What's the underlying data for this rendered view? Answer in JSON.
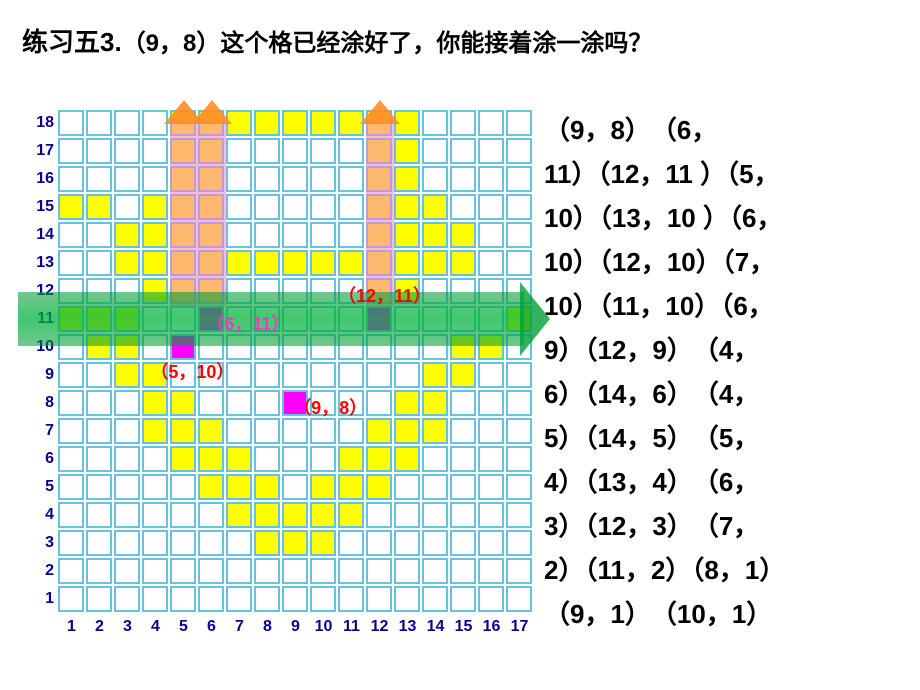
{
  "title": {
    "prefix": "练习五3.",
    "coord": "（9，8）",
    "rest": "这个格已经涂好了，你能接着涂一涂吗？"
  },
  "grid": {
    "cols": 17,
    "rows": 18,
    "cellSize": 28,
    "yellow": [
      [
        1,
        15
      ],
      [
        2,
        15
      ],
      [
        3,
        14
      ],
      [
        3,
        13
      ],
      [
        4,
        12
      ],
      [
        4,
        8
      ],
      [
        4,
        7
      ],
      [
        5,
        18
      ],
      [
        6,
        18
      ],
      [
        7,
        18
      ],
      [
        8,
        18
      ],
      [
        9,
        18
      ],
      [
        10,
        18
      ],
      [
        11,
        18
      ],
      [
        12,
        18
      ],
      [
        13,
        18
      ],
      [
        5,
        17
      ],
      [
        6,
        17
      ],
      [
        12,
        17
      ],
      [
        13,
        17
      ],
      [
        5,
        16
      ],
      [
        6,
        16
      ],
      [
        12,
        16
      ],
      [
        13,
        16
      ],
      [
        4,
        15
      ],
      [
        5,
        15
      ],
      [
        6,
        15
      ],
      [
        12,
        15
      ],
      [
        13,
        15
      ],
      [
        14,
        15
      ],
      [
        3,
        14
      ],
      [
        4,
        14
      ],
      [
        5,
        14
      ],
      [
        6,
        14
      ],
      [
        12,
        14
      ],
      [
        13,
        14
      ],
      [
        14,
        14
      ],
      [
        15,
        14
      ],
      [
        3,
        13
      ],
      [
        4,
        13
      ],
      [
        5,
        13
      ],
      [
        6,
        13
      ],
      [
        7,
        13
      ],
      [
        8,
        13
      ],
      [
        9,
        13
      ],
      [
        10,
        13
      ],
      [
        11,
        13
      ],
      [
        12,
        13
      ],
      [
        13,
        13
      ],
      [
        14,
        13
      ],
      [
        15,
        13
      ],
      [
        5,
        12
      ],
      [
        6,
        12
      ],
      [
        12,
        12
      ],
      [
        13,
        12
      ],
      [
        6,
        7
      ],
      [
        7,
        6
      ],
      [
        8,
        5
      ],
      [
        9,
        4
      ],
      [
        10,
        5
      ],
      [
        11,
        6
      ],
      [
        12,
        7
      ],
      [
        1,
        11
      ],
      [
        2,
        11
      ],
      [
        3,
        11
      ],
      [
        17,
        11
      ],
      [
        2,
        10
      ],
      [
        3,
        10
      ],
      [
        15,
        10
      ],
      [
        16,
        10
      ],
      [
        3,
        9
      ],
      [
        4,
        9
      ],
      [
        14,
        9
      ],
      [
        15,
        9
      ],
      [
        4,
        8
      ],
      [
        5,
        8
      ],
      [
        13,
        8
      ],
      [
        14,
        8
      ],
      [
        4,
        7
      ],
      [
        5,
        7
      ],
      [
        6,
        7
      ],
      [
        12,
        7
      ],
      [
        13,
        7
      ],
      [
        14,
        7
      ],
      [
        5,
        6
      ],
      [
        6,
        6
      ],
      [
        7,
        6
      ],
      [
        11,
        6
      ],
      [
        12,
        6
      ],
      [
        13,
        6
      ],
      [
        6,
        5
      ],
      [
        7,
        5
      ],
      [
        8,
        5
      ],
      [
        10,
        5
      ],
      [
        11,
        5
      ],
      [
        12,
        5
      ],
      [
        7,
        4
      ],
      [
        8,
        4
      ],
      [
        9,
        4
      ],
      [
        10,
        4
      ],
      [
        11,
        4
      ],
      [
        8,
        3
      ],
      [
        9,
        3
      ],
      [
        10,
        3
      ]
    ],
    "magenta": [
      [
        9,
        8
      ],
      [
        6,
        11
      ],
      [
        12,
        11
      ],
      [
        5,
        10
      ]
    ],
    "hBar": {
      "row": 11
    },
    "vBars": [
      5,
      6,
      12
    ],
    "annotations": [
      {
        "text": "（12，11）",
        "col": 11,
        "row": 12,
        "cls": "red"
      },
      {
        "text": "（6，11）",
        "col": 6.3,
        "row": 11,
        "cls": "pink"
      },
      {
        "text": "（5，10）",
        "col": 4.3,
        "row": 9.3,
        "cls": "red"
      },
      {
        "text": "（9，8）",
        "col": 9.4,
        "row": 8,
        "cls": "red"
      }
    ]
  },
  "right_list_lines": [
    "（9，8）　（6，",
    "11）（12，11 ）（5，",
    "10）（13，10 ）（6，",
    "10）（12，10）（7，",
    "10）（11，10）（6，",
    "9）（12，9）　（4，",
    "6）（14，6）　（4，",
    "5）（14，5）　（5，",
    "4）（13，4）　（6，",
    "3）（12，3）　（7，",
    "2）（11，2）（8，1）",
    "（9，1）　（10，1）"
  ],
  "colors": {
    "gridBorder": "#66c2e0",
    "yellow": "#ffff00",
    "magenta": "#ff00ff",
    "axisLabel": "#080090"
  }
}
